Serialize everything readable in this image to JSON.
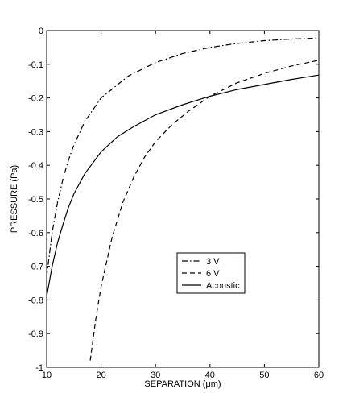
{
  "chart_data": {
    "type": "line",
    "title": "",
    "xlabel": "SEPARATION (μm)",
    "ylabel": "PRESSURE (Pa)",
    "xlim": [
      10,
      60
    ],
    "ylim": [
      -1,
      0
    ],
    "xticks": [
      10,
      20,
      30,
      40,
      50,
      60
    ],
    "xtick_labels": [
      "10",
      "20",
      "30",
      "40",
      "50",
      "60"
    ],
    "yticks": [
      0,
      -0.1,
      -0.2,
      -0.3,
      -0.4,
      -0.5,
      -0.6,
      -0.7,
      -0.8,
      -0.9,
      -1
    ],
    "ytick_labels": [
      "0",
      "-0.1",
      "-0.2",
      "-0.3",
      "-0.4",
      "-0.5",
      "-0.6",
      "-0.7",
      "-0.8",
      "-0.9",
      "-1"
    ],
    "grid": false,
    "legend_position": "center-right",
    "series": [
      {
        "name": "3 V",
        "style": "dashdot",
        "color": "#000000",
        "x": [
          10,
          11,
          12,
          13,
          14,
          15,
          17,
          20,
          25,
          30,
          35,
          40,
          45,
          50,
          55,
          60
        ],
        "y": [
          -0.73,
          -0.6,
          -0.51,
          -0.44,
          -0.385,
          -0.34,
          -0.27,
          -0.2,
          -0.135,
          -0.095,
          -0.068,
          -0.05,
          -0.038,
          -0.03,
          -0.025,
          -0.022
        ]
      },
      {
        "name": "6 V",
        "style": "dashed",
        "color": "#000000",
        "x": [
          18,
          19,
          20,
          22,
          24,
          26,
          28,
          30,
          33,
          36,
          40,
          45,
          50,
          55,
          60
        ],
        "y": [
          -0.98,
          -0.86,
          -0.76,
          -0.615,
          -0.51,
          -0.435,
          -0.375,
          -0.33,
          -0.28,
          -0.24,
          -0.195,
          -0.155,
          -0.127,
          -0.105,
          -0.088
        ]
      },
      {
        "name": "Acoustic",
        "style": "solid",
        "color": "#000000",
        "x": [
          10,
          11,
          12,
          13,
          14,
          15,
          17,
          20,
          23,
          26,
          30,
          35,
          40,
          45,
          50,
          55,
          60
        ],
        "y": [
          -0.79,
          -0.7,
          -0.63,
          -0.575,
          -0.525,
          -0.485,
          -0.425,
          -0.36,
          -0.315,
          -0.285,
          -0.25,
          -0.22,
          -0.195,
          -0.175,
          -0.16,
          -0.145,
          -0.132
        ]
      }
    ]
  }
}
